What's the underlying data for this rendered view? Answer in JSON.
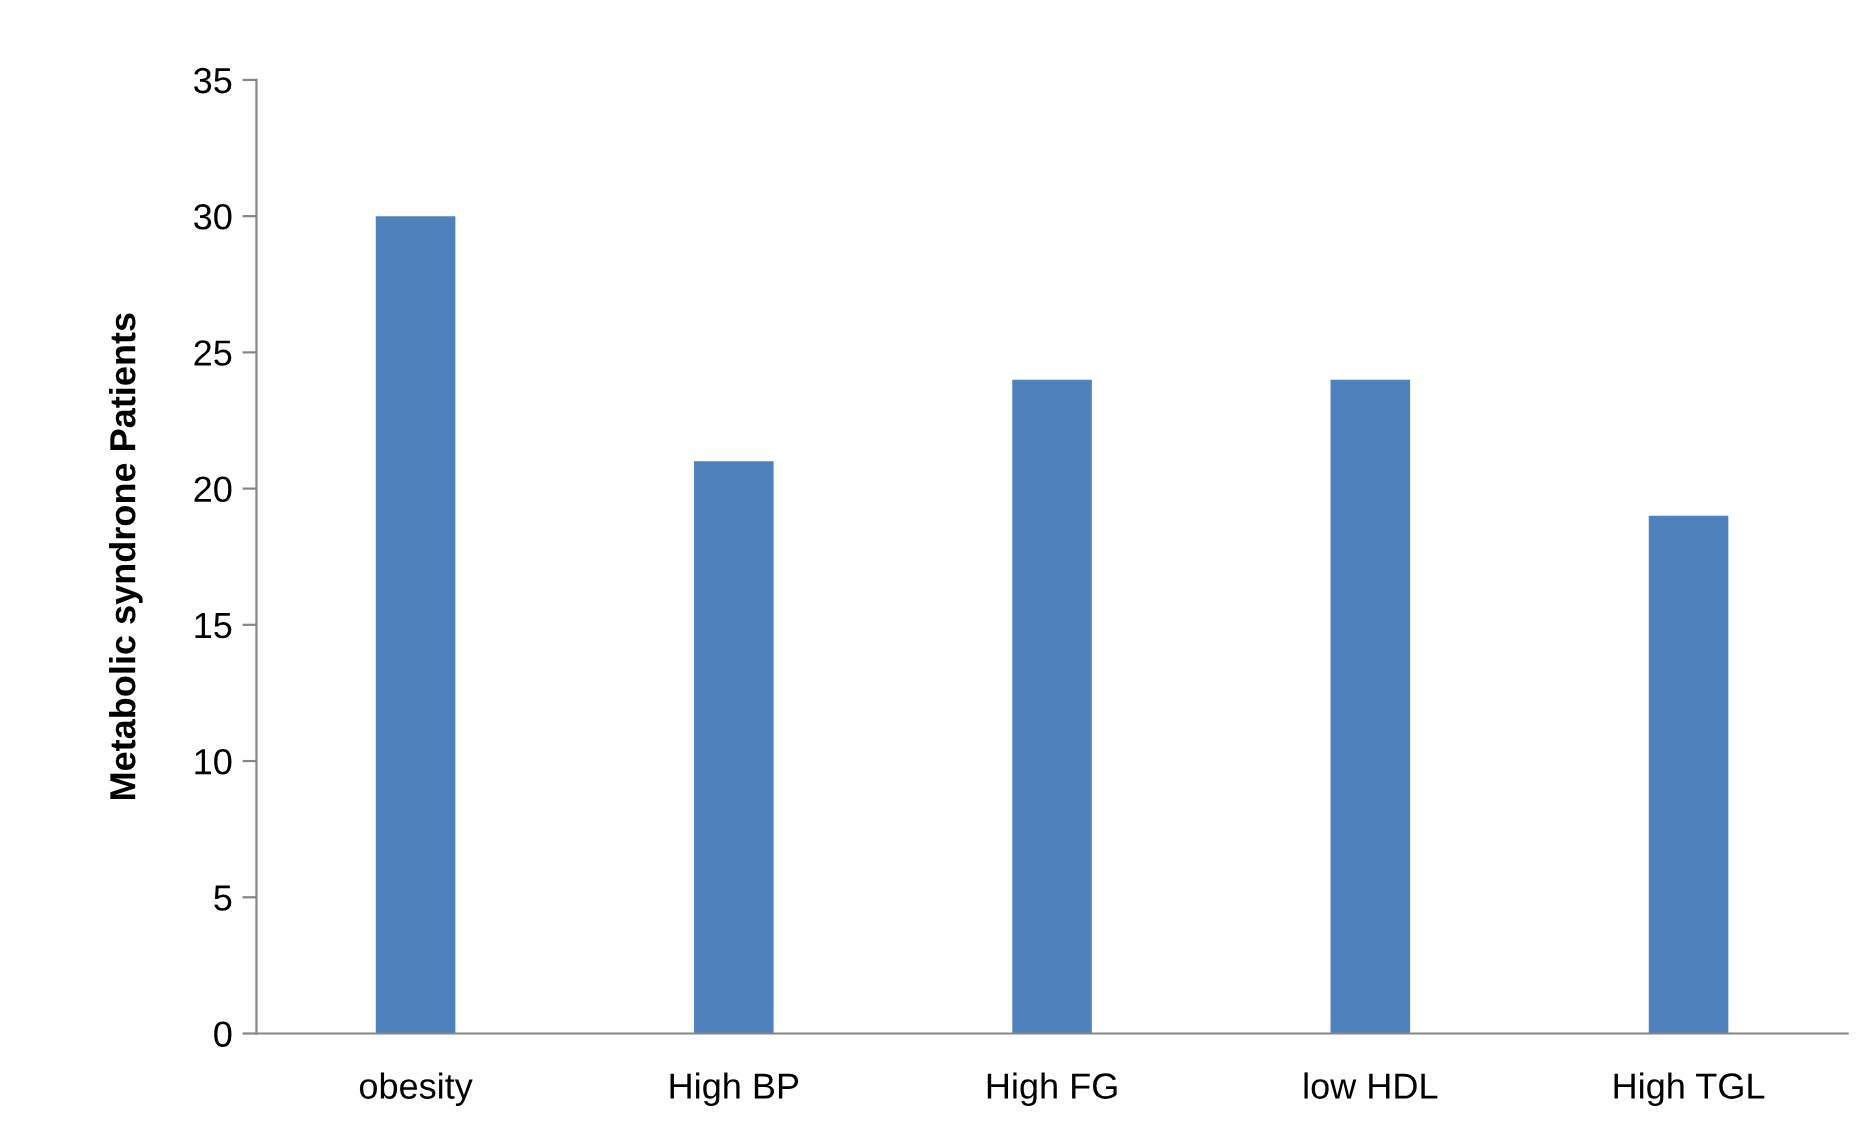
{
  "chart_data": {
    "type": "bar",
    "ylabel": "Metabolic syndrone Patients",
    "categories": [
      "obesity",
      "High BP",
      "High FG",
      "low HDL",
      "High TGL"
    ],
    "values": [
      30,
      21,
      24,
      24,
      19
    ],
    "color": "#4f81bd",
    "ylim": [
      0,
      35
    ],
    "yticks": [
      0,
      5,
      10,
      15,
      20,
      25,
      30,
      35
    ],
    "grid": false,
    "legend": false
  }
}
